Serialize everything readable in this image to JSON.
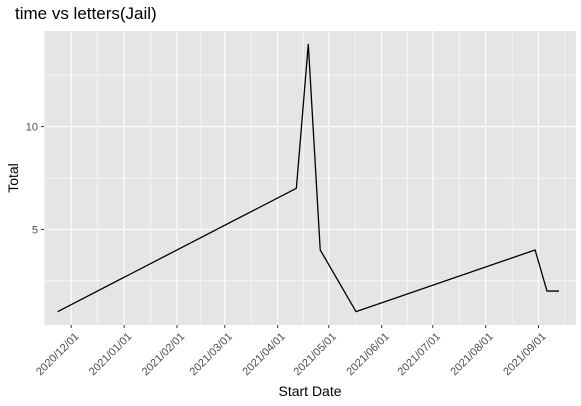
{
  "chart_data": {
    "type": "line",
    "title": "time vs letters(Jail)",
    "xlabel": "Start Date",
    "ylabel": "Total",
    "x_tick_labels": [
      "2020/12/01",
      "2021/01/01",
      "2021/02/01",
      "2021/03/01",
      "2021/04/01",
      "2021/05/01",
      "2021/06/01",
      "2021/07/01",
      "2021/08/01",
      "2021/09/01"
    ],
    "x_ticks": [
      "2020-12-01",
      "2021-01-01",
      "2021-02-01",
      "2021-03-01",
      "2021-04-01",
      "2021-05-01",
      "2021-06-01",
      "2021-07-01",
      "2021-08-01",
      "2021-09-01"
    ],
    "y_ticks": [
      5,
      10
    ],
    "xlim": [
      "2020-11-15",
      "2021-09-23"
    ],
    "ylim": [
      0.35,
      14.65
    ],
    "series": [
      {
        "x": [
          "2020-11-23",
          "2021-04-12",
          "2021-04-19",
          "2021-04-26",
          "2021-05-17",
          "2021-08-30",
          "2021-09-06",
          "2021-09-13"
        ],
        "y": [
          1,
          7,
          14,
          4,
          1,
          4,
          2,
          2
        ],
        "color": "#000000"
      }
    ],
    "grid": true,
    "panel_background": "#e5e5e5",
    "grid_color": "#ffffff",
    "legend": "none"
  }
}
